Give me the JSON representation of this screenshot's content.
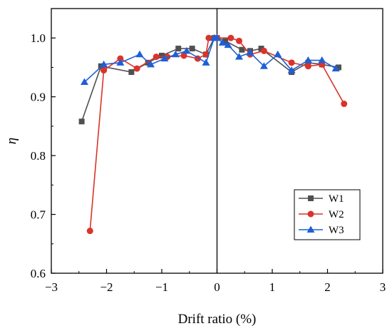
{
  "chart_data": {
    "type": "line",
    "title": "",
    "xlabel": "Drift ratio (%)",
    "ylabel": "η",
    "xlim": [
      -3,
      3
    ],
    "ylim": [
      0.6,
      1.05
    ],
    "xticks": [
      -3,
      -2,
      -1,
      0,
      1,
      2,
      3
    ],
    "xtick_labels": [
      "−3",
      "−2",
      "−1",
      "0",
      "1",
      "2",
      "3"
    ],
    "yticks": [
      0.6,
      0.7,
      0.8,
      0.9,
      1.0
    ],
    "ytick_labels": [
      "0.6",
      "0.7",
      "0.8",
      "0.9",
      "1.0"
    ],
    "reference_line": {
      "x": 0
    },
    "grid": false,
    "legend_position": "lower-right",
    "series": [
      {
        "name": "W1",
        "color": "#505050",
        "marker": "square",
        "segments": [
          {
            "x": [
              -2.45,
              -2.1,
              -1.55,
              -1.25,
              -1.0,
              -0.7,
              -0.45,
              -0.2,
              -0.05
            ],
            "y": [
              0.858,
              0.952,
              0.942,
              0.958,
              0.97,
              0.982,
              0.982,
              0.972,
              1.0
            ]
          },
          {
            "x": [
              0.0,
              0.15,
              0.45,
              0.6,
              0.8,
              1.35,
              1.65,
              1.9,
              2.2
            ],
            "y": [
              1.0,
              0.995,
              0.98,
              0.978,
              0.982,
              0.942,
              0.958,
              0.955,
              0.95
            ]
          }
        ]
      },
      {
        "name": "W2",
        "color": "#d9342b",
        "marker": "circle",
        "segments": [
          {
            "x": [
              -2.3,
              -2.05,
              -1.75,
              -1.45,
              -1.1,
              -0.9,
              -0.6,
              -0.35,
              -0.2,
              -0.15
            ],
            "y": [
              0.672,
              0.945,
              0.965,
              0.948,
              0.968,
              0.968,
              0.97,
              0.965,
              0.972,
              1.0
            ]
          },
          {
            "x": [
              0.0,
              0.25,
              0.4,
              0.6,
              0.85,
              1.35,
              1.65,
              1.9,
              2.3
            ],
            "y": [
              1.0,
              1.0,
              0.995,
              0.972,
              0.978,
              0.958,
              0.952,
              0.955,
              0.888
            ]
          }
        ]
      },
      {
        "name": "W3",
        "color": "#1f5fd6",
        "marker": "triangle",
        "segments": [
          {
            "x": [
              -2.4,
              -2.05,
              -1.75,
              -1.4,
              -1.2,
              -0.95,
              -0.75,
              -0.55,
              -0.2,
              -0.05
            ],
            "y": [
              0.925,
              0.955,
              0.958,
              0.972,
              0.955,
              0.965,
              0.972,
              0.978,
              0.958,
              1.0
            ]
          },
          {
            "x": [
              0.0,
              0.1,
              0.2,
              0.4,
              0.6,
              0.85,
              1.1,
              1.35,
              1.65,
              1.9,
              2.15
            ],
            "y": [
              1.0,
              0.992,
              0.988,
              0.968,
              0.975,
              0.952,
              0.972,
              0.945,
              0.962,
              0.962,
              0.948
            ]
          }
        ]
      }
    ]
  }
}
